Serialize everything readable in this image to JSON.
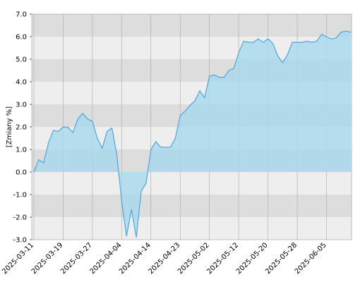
{
  "chart_data": {
    "type": "area",
    "y_label": "[Zmiany %]",
    "categories": [
      "2025-03-11",
      null,
      null,
      null,
      null,
      null,
      "2025-03-19",
      null,
      null,
      null,
      null,
      null,
      "2025-03-27",
      null,
      null,
      null,
      null,
      null,
      "2025-04-04",
      null,
      null,
      null,
      null,
      null,
      "2025-04-14",
      null,
      null,
      null,
      null,
      null,
      "2025-04-23",
      null,
      null,
      null,
      null,
      null,
      "2025-05-02",
      null,
      null,
      null,
      null,
      null,
      "2025-05-12",
      null,
      null,
      null,
      null,
      null,
      "2025-05-20",
      null,
      null,
      null,
      null,
      null,
      "2025-05-28",
      null,
      null,
      null,
      null,
      null,
      "2025-06-05",
      null,
      null,
      null,
      null,
      null
    ],
    "values": [
      0.0,
      0.55,
      0.4,
      1.3,
      1.85,
      1.8,
      2.0,
      1.98,
      1.75,
      2.35,
      2.6,
      2.35,
      2.25,
      1.5,
      1.05,
      1.8,
      1.95,
      0.8,
      -1.3,
      -2.85,
      -1.65,
      -2.9,
      -0.85,
      -0.5,
      1.0,
      1.35,
      1.1,
      1.1,
      1.1,
      1.5,
      2.5,
      2.7,
      2.95,
      3.15,
      3.6,
      3.3,
      4.25,
      4.3,
      4.2,
      4.2,
      4.5,
      4.6,
      5.3,
      5.8,
      5.75,
      5.75,
      5.9,
      5.75,
      5.9,
      5.7,
      5.15,
      4.85,
      5.2,
      5.75,
      5.75,
      5.75,
      5.8,
      5.75,
      5.8,
      6.1,
      6.0,
      5.9,
      5.95,
      6.2,
      6.25,
      6.2
    ],
    "color": "#4ea6e0",
    "fill": "#a8d8ec",
    "ylim": [
      -3,
      7
    ],
    "yticks": [
      {
        "value": -3,
        "label": "-3.0"
      },
      {
        "value": -2,
        "label": "-2.0"
      },
      {
        "value": -1,
        "label": "-1.0"
      },
      {
        "value": 0,
        "label": "0.0"
      },
      {
        "value": 1,
        "label": "1.0"
      },
      {
        "value": 2,
        "label": "2.0"
      },
      {
        "value": 3,
        "label": "3.0"
      },
      {
        "value": 4,
        "label": "4.0"
      },
      {
        "value": 5,
        "label": "5.0"
      },
      {
        "value": 6,
        "label": "6.0"
      },
      {
        "value": 7,
        "label": "7.0"
      }
    ],
    "band_colors": [
      "#eeeeee",
      "#dddddd"
    ]
  }
}
